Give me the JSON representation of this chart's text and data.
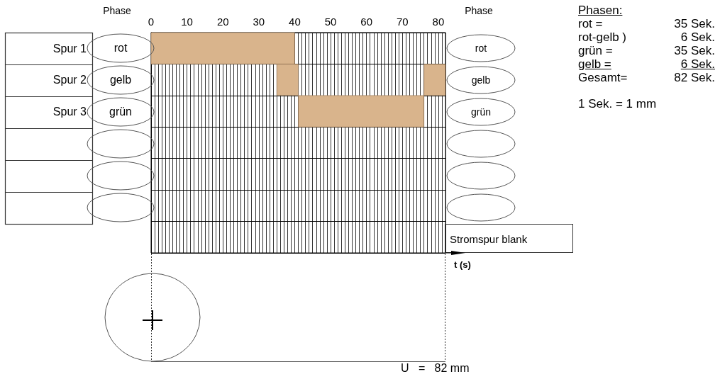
{
  "chart_data": {
    "type": "bar",
    "orientation": "horizontal",
    "categories": [
      "Spur 1",
      "Spur 2",
      "Spur 3",
      null,
      null,
      null,
      null
    ],
    "series": [
      {
        "color": "#d9b48c",
        "values": [
          40,
          6,
          35,
          null,
          null,
          null,
          null
        ],
        "base": [
          0,
          35,
          41,
          null,
          null,
          null,
          null
        ]
      },
      {
        "color": "#d9b48c",
        "values": [
          null,
          6,
          null,
          null,
          null,
          null,
          null
        ],
        "base": [
          null,
          76,
          null,
          null,
          null,
          null,
          null
        ]
      }
    ],
    "xlabel": "t (s)",
    "xlim": [
      0,
      82
    ],
    "xticks": [
      0,
      {
        "value": 1,
        "label": null
      },
      {
        "value": 2,
        "label": null
      },
      {
        "value": 3,
        "label": null
      },
      {
        "value": 4,
        "label": null
      },
      {
        "value": 5,
        "label": null
      },
      {
        "value": 6,
        "label": null
      },
      {
        "value": 7,
        "label": null
      },
      {
        "value": 8,
        "label": null
      },
      {
        "value": 9,
        "label": null
      },
      10,
      {
        "value": 11,
        "label": null
      },
      {
        "value": 12,
        "label": null
      },
      {
        "value": 13,
        "label": null
      },
      {
        "value": 14,
        "label": null
      },
      {
        "value": 15,
        "label": null
      },
      {
        "value": 16,
        "label": null
      },
      {
        "value": 17,
        "label": null
      },
      {
        "value": 18,
        "label": null
      },
      {
        "value": 19,
        "label": null
      },
      20,
      {
        "value": 21,
        "label": null
      },
      {
        "value": 22,
        "label": null
      },
      {
        "value": 23,
        "label": null
      },
      {
        "value": 24,
        "label": null
      },
      {
        "value": 25,
        "label": null
      },
      {
        "value": 26,
        "label": null
      },
      {
        "value": 27,
        "label": null
      },
      {
        "value": 28,
        "label": null
      },
      {
        "value": 29,
        "label": null
      },
      30,
      {
        "value": 31,
        "label": null
      },
      {
        "value": 32,
        "label": null
      },
      {
        "value": 33,
        "label": null
      },
      {
        "value": 34,
        "label": null
      },
      {
        "value": 35,
        "label": null
      },
      {
        "value": 36,
        "label": null
      },
      {
        "value": 37,
        "label": null
      },
      {
        "value": 38,
        "label": null
      },
      {
        "value": 39,
        "label": null
      },
      40,
      {
        "value": 41,
        "label": null
      },
      {
        "value": 42,
        "label": null
      },
      {
        "value": 43,
        "label": null
      },
      {
        "value": 44,
        "label": null
      },
      {
        "value": 45,
        "label": null
      },
      {
        "value": 46,
        "label": null
      },
      {
        "value": 47,
        "label": null
      },
      {
        "value": 48,
        "label": null
      },
      {
        "value": 49,
        "label": null
      },
      50,
      {
        "value": 51,
        "label": null
      },
      {
        "value": 52,
        "label": null
      },
      {
        "value": 53,
        "label": null
      },
      {
        "value": 54,
        "label": null
      },
      {
        "value": 55,
        "label": null
      },
      {
        "value": 56,
        "label": null
      },
      {
        "value": 57,
        "label": null
      },
      {
        "value": 58,
        "label": null
      },
      {
        "value": 59,
        "label": null
      },
      60,
      {
        "value": 61,
        "label": null
      },
      {
        "value": 62,
        "label": null
      },
      {
        "value": 63,
        "label": null
      },
      {
        "value": 64,
        "label": null
      },
      {
        "value": 65,
        "label": null
      },
      {
        "value": 66,
        "label": null
      },
      {
        "value": 67,
        "label": null
      },
      {
        "value": 68,
        "label": null
      },
      {
        "value": 69,
        "label": null
      },
      70,
      {
        "value": 71,
        "label": null
      },
      {
        "value": 72,
        "label": null
      },
      {
        "value": 73,
        "label": null
      },
      {
        "value": 74,
        "label": null
      },
      {
        "value": 75,
        "label": null
      },
      {
        "value": 76,
        "label": null
      },
      {
        "value": 77,
        "label": null
      },
      {
        "value": 78,
        "label": null
      },
      {
        "value": 79,
        "label": null
      },
      80,
      {
        "value": 81,
        "label": null
      },
      {
        "value": 82,
        "label": null
      }
    ],
    "grid": true,
    "annotations": [
      "Phase",
      "Phase",
      "rot",
      "gelb",
      "grün",
      "rot",
      "gelb",
      "grün",
      "Phasen:",
      "rot =",
      "35 Sek.",
      "rot-gelb )",
      "6 Sek.",
      "grün =",
      "35 Sek.",
      "gelb =",
      "6 Sek.",
      "Gesamt=",
      "82 Sek.",
      "1 Sek. = 1 mm",
      "Stromspur blank",
      "U   =   82 mm"
    ]
  }
}
